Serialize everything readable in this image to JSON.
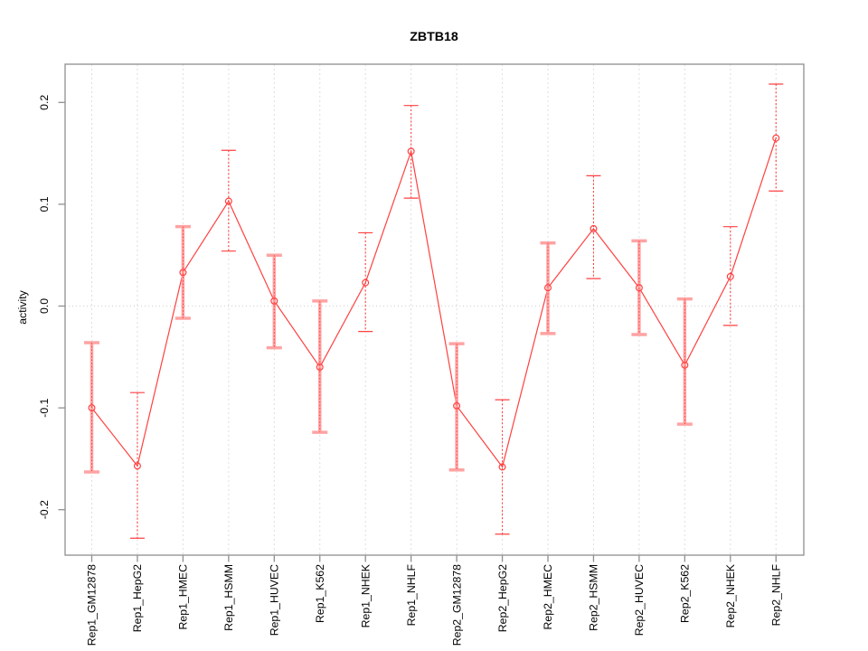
{
  "chart_data": {
    "type": "line",
    "title": "ZBTB18",
    "xlabel": "",
    "ylabel": "activity",
    "legend_position": "none",
    "grid": {
      "vertical_gridlines": "dashed-per-category",
      "zero_line": "dotted",
      "horizontal_gridlines": false
    },
    "categories": [
      "Rep1_GM12878",
      "Rep1_HepG2",
      "Rep1_HMEC",
      "Rep1_HSMM",
      "Rep1_HUVEC",
      "Rep1_K562",
      "Rep1_NHEK",
      "Rep1_NHLF",
      "Rep2_GM12878",
      "Rep2_HepG2",
      "Rep2_HMEC",
      "Rep2_HSMM",
      "Rep2_HUVEC",
      "Rep2_K562",
      "Rep2_NHEK",
      "Rep2_NHLF"
    ],
    "series": [
      {
        "name": "activity",
        "marker": "open-circle",
        "values": [
          -0.1,
          -0.157,
          0.033,
          0.103,
          0.005,
          -0.06,
          0.023,
          0.152,
          -0.098,
          -0.158,
          0.018,
          0.076,
          0.018,
          -0.058,
          0.029,
          0.165
        ],
        "ci_low": [
          -0.163,
          -0.228,
          -0.012,
          0.054,
          -0.041,
          -0.124,
          -0.025,
          0.106,
          -0.161,
          -0.224,
          -0.027,
          0.027,
          -0.028,
          -0.116,
          -0.019,
          0.113
        ],
        "ci_high": [
          -0.036,
          -0.085,
          0.078,
          0.153,
          0.05,
          0.005,
          0.072,
          0.197,
          -0.037,
          -0.092,
          0.062,
          0.128,
          0.064,
          0.007,
          0.078,
          0.218
        ],
        "errorbar_style": [
          "wide",
          "narrow",
          "wide",
          "narrow",
          "wide",
          "wide",
          "narrow",
          "narrow",
          "wide",
          "narrow",
          "wide",
          "narrow",
          "wide",
          "wide",
          "narrow",
          "narrow"
        ]
      }
    ],
    "ytick_labels": [
      "-0.2",
      "-0.1",
      "0.0",
      "0.1",
      "0.2"
    ],
    "ylim": [
      -0.245,
      0.238
    ],
    "colors": {
      "series_red": "#ff4040",
      "errorbar_wide_pink": "#ffa3a3",
      "frame_grey": "#8f8f8f",
      "gridline_grey": "#dedede",
      "zero_line_grey": "#cfcfcf",
      "text_black": "#000000",
      "background": "#ffffff"
    }
  }
}
